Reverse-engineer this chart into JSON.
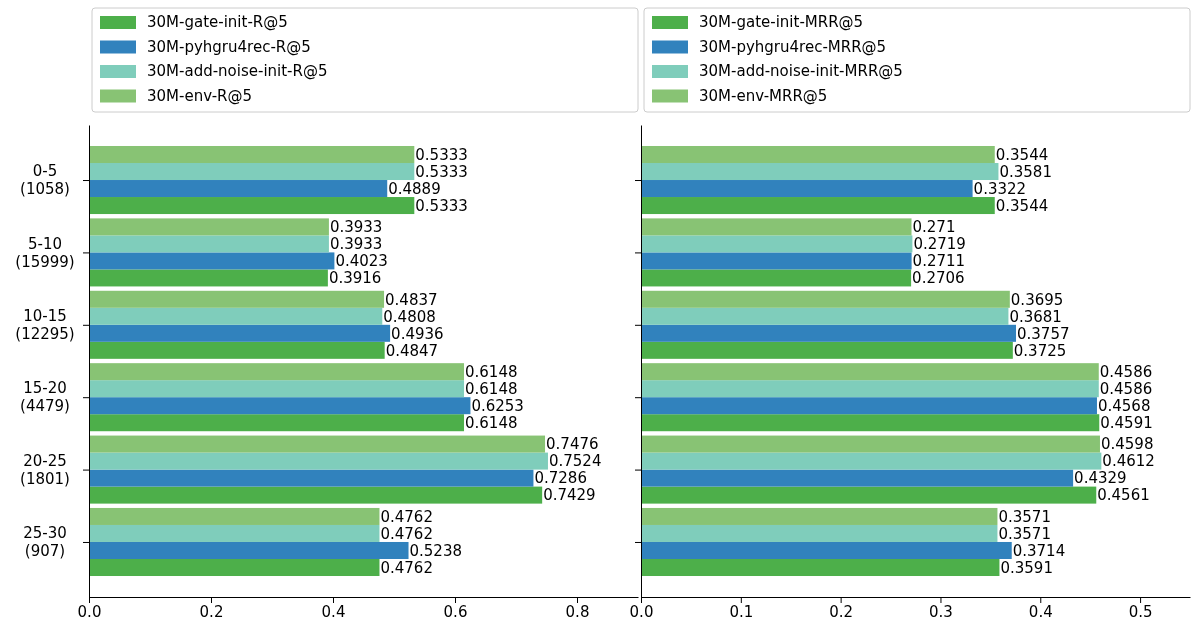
{
  "chart_data": [
    {
      "type": "bar",
      "orientation": "horizontal",
      "categories": [
        "0-5\n(1058)",
        "5-10\n(15999)",
        "10-15\n(12295)",
        "15-20\n(4479)",
        "20-25\n(1801)",
        "25-30\n(907)"
      ],
      "series": [
        {
          "name": "30M-gate-init-R@5",
          "color": "#4daf4a",
          "values": [
            0.5333,
            0.3916,
            0.4847,
            0.6148,
            0.7429,
            0.4762
          ]
        },
        {
          "name": "30M-pyhgru4rec-R@5",
          "color": "#3182bd",
          "values": [
            0.4889,
            0.4023,
            0.4936,
            0.6253,
            0.7286,
            0.5238
          ]
        },
        {
          "name": "30M-add-noise-init-R@5",
          "color": "#7fcdbb",
          "values": [
            0.5333,
            0.3933,
            0.4808,
            0.6148,
            0.7524,
            0.4762
          ]
        },
        {
          "name": "30M-env-R@5",
          "color": "#88c374",
          "values": [
            0.5333,
            0.3933,
            0.4837,
            0.6148,
            0.7476,
            0.4762
          ]
        }
      ],
      "xlim": [
        0,
        0.9
      ],
      "xticks": [
        {
          "value": 0,
          "label": "0.0"
        },
        0.2,
        0.4,
        0.6,
        0.8
      ],
      "data_labels": true,
      "legend": "top"
    },
    {
      "type": "bar",
      "orientation": "horizontal",
      "categories": [
        null,
        null,
        null,
        null,
        null,
        null
      ],
      "series": [
        {
          "name": "30M-gate-init-MRR@5",
          "color": "#4daf4a",
          "values": [
            0.3544,
            0.2706,
            0.3725,
            0.4591,
            0.4561,
            0.3591
          ]
        },
        {
          "name": "30M-pyhgru4rec-MRR@5",
          "color": "#3182bd",
          "values": [
            0.3322,
            0.2711,
            0.3757,
            0.4568,
            0.4329,
            0.3714
          ]
        },
        {
          "name": "30M-add-noise-init-MRR@5",
          "color": "#7fcdbb",
          "values": [
            0.3581,
            0.2719,
            0.3681,
            0.4586,
            0.4612,
            0.3571
          ]
        },
        {
          "name": "30M-env-MRR@5",
          "color": "#88c374",
          "values": [
            0.3544,
            0.271,
            0.3695,
            0.4586,
            0.4598,
            0.3571
          ]
        }
      ],
      "xlim": [
        0,
        0.55
      ],
      "xticks": [
        {
          "value": 0,
          "label": "0.0"
        },
        0.1,
        0.2,
        0.3,
        0.4,
        0.5
      ],
      "data_labels": true,
      "legend": "top",
      "tick_labels": "x"
    }
  ]
}
